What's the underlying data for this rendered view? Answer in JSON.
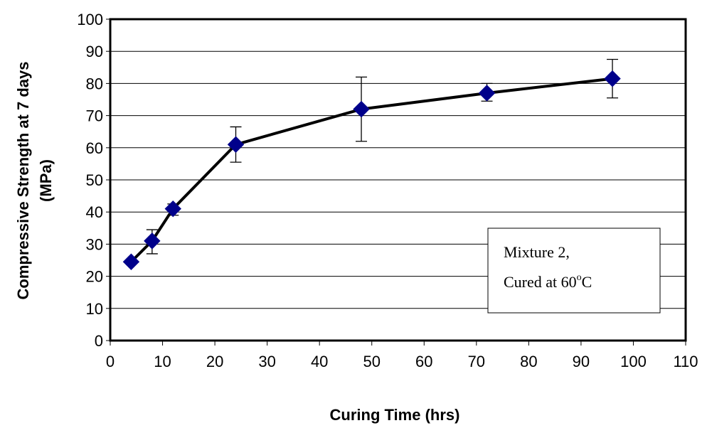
{
  "chart_data": {
    "type": "line",
    "xlabel": "Curing Time (hrs)",
    "ylabel_line1": "Compressive Strength at 7 days",
    "ylabel_line2": "(MPa)",
    "xlim": [
      0,
      110
    ],
    "ylim": [
      0,
      100
    ],
    "x_ticks": [
      "0",
      "10",
      "20",
      "30",
      "40",
      "50",
      "60",
      "70",
      "80",
      "90",
      "100",
      "110"
    ],
    "y_ticks": [
      "0",
      "10",
      "20",
      "30",
      "40",
      "50",
      "60",
      "70",
      "80",
      "90",
      "100"
    ],
    "grid": "horizontal",
    "series": [
      {
        "color": "#00008B",
        "marker": "diamond",
        "x": [
          4,
          8,
          12,
          24,
          48,
          72,
          96
        ],
        "y": [
          24.5,
          31,
          41,
          61,
          72,
          77,
          81.5
        ],
        "error_low": [
          24,
          27,
          39,
          55.5,
          62,
          74.5,
          75.5
        ],
        "error_high": [
          25,
          34.5,
          42.5,
          66.5,
          82,
          80,
          87.5
        ]
      }
    ],
    "annotation": {
      "line1": "Mixture 2,",
      "line2_prefix": "Cured at 60",
      "line2_sup": "o",
      "line2_suffix": "C"
    }
  }
}
